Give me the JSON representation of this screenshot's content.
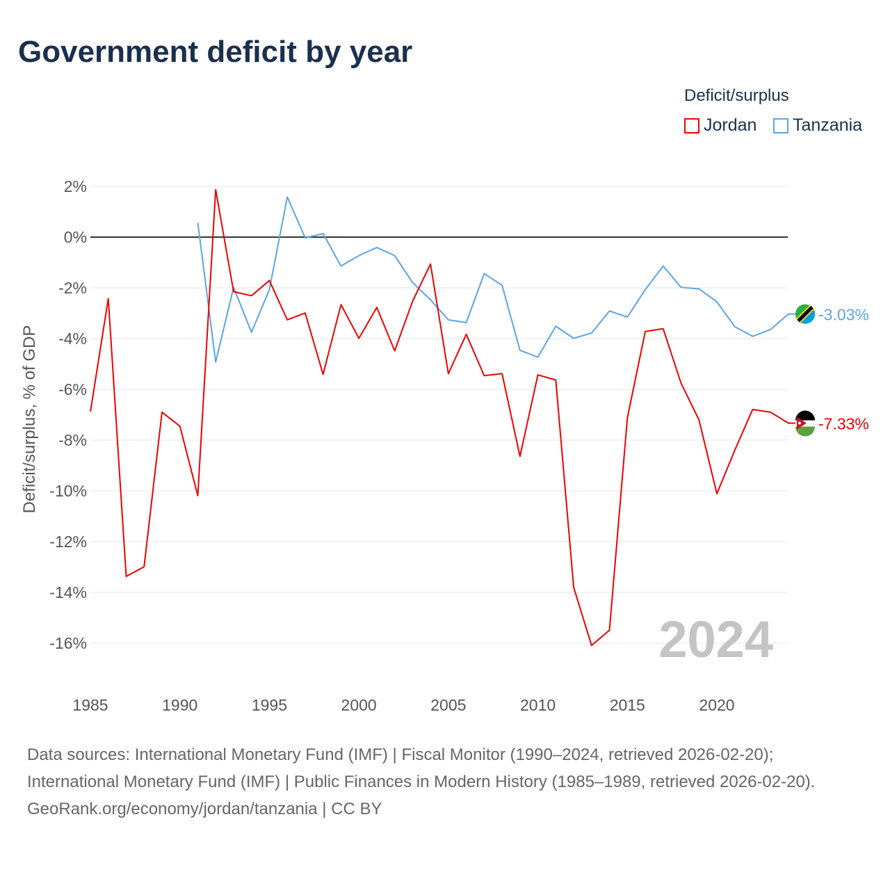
{
  "title": "Government deficit by year",
  "legend": {
    "title": "Deficit/surplus",
    "items": [
      "Jordan",
      "Tanzania"
    ]
  },
  "footer": {
    "sources": "Data sources: International Monetary Fund (IMF) | Fiscal Monitor (1990–2024, retrieved 2026-02-20); International Monetary Fund (IMF) | Public Finances in Modern History (1985–1989, retrieved 2026-02-20).",
    "credit": "GeoRank.org/economy/jordan/tanzania | CC BY"
  },
  "chart_data": {
    "type": "line",
    "title": "Government deficit by year",
    "xlabel": "",
    "ylabel": "Deficit/surplus, % of GDP",
    "xlim": [
      1985,
      2024
    ],
    "ylim": [
      -17,
      2
    ],
    "x_ticks": [
      1985,
      1990,
      1995,
      2000,
      2005,
      2010,
      2015,
      2020
    ],
    "y_ticks": [
      2,
      0,
      -2,
      -4,
      -6,
      -8,
      -10,
      -12,
      -14,
      -16
    ],
    "y_tick_labels": [
      "2%",
      "0%",
      "-2%",
      "-4%",
      "-6%",
      "-8%",
      "-10%",
      "-12%",
      "-14%",
      "-16%"
    ],
    "year_watermark": "2024",
    "grid": true,
    "legend_position": "top-right",
    "series": [
      {
        "name": "Jordan",
        "color": "#ee0000",
        "end_label": "-7.33%",
        "x": [
          1985,
          1986,
          1987,
          1988,
          1989,
          1990,
          1991,
          1992,
          1993,
          1994,
          1995,
          1996,
          1997,
          1998,
          1999,
          2000,
          2001,
          2002,
          2003,
          2004,
          2005,
          2006,
          2007,
          2008,
          2009,
          2010,
          2011,
          2012,
          2013,
          2014,
          2015,
          2016,
          2017,
          2018,
          2019,
          2020,
          2021,
          2022,
          2023,
          2024
        ],
        "values": [
          -6.88,
          -2.42,
          -13.37,
          -12.99,
          -6.9,
          -7.45,
          -10.19,
          1.87,
          -2.15,
          -2.31,
          -1.71,
          -3.26,
          -2.99,
          -5.41,
          -2.66,
          -3.99,
          -2.77,
          -4.48,
          -2.53,
          -1.06,
          -5.38,
          -3.83,
          -5.46,
          -5.38,
          -8.64,
          -5.43,
          -5.63,
          -13.8,
          -16.09,
          -15.49,
          -7.12,
          -3.72,
          -3.61,
          -5.76,
          -7.2,
          -10.11,
          -8.4,
          -6.79,
          -6.9,
          -7.33
        ]
      },
      {
        "name": "Tanzania",
        "color": "#5aa4ea",
        "end_label": "-3.03%",
        "x": [
          1991,
          1992,
          1993,
          1994,
          1995,
          1996,
          1997,
          1998,
          1999,
          2000,
          2001,
          2002,
          2003,
          2004,
          2005,
          2006,
          2007,
          2008,
          2009,
          2010,
          2011,
          2012,
          2013,
          2014,
          2015,
          2016,
          2017,
          2018,
          2019,
          2020,
          2021,
          2022,
          2023,
          2024
        ],
        "values": [
          0.57,
          -4.92,
          -1.98,
          -3.75,
          -2.07,
          1.58,
          -0.03,
          0.14,
          -1.14,
          -0.73,
          -0.41,
          -0.73,
          -1.79,
          -2.47,
          -3.26,
          -3.37,
          -1.44,
          -1.9,
          -4.46,
          -4.73,
          -3.51,
          -3.99,
          -3.78,
          -2.91,
          -3.15,
          -2.07,
          -1.14,
          -1.98,
          -2.04,
          -2.55,
          -3.53,
          -3.91,
          -3.64,
          -3.03
        ]
      }
    ]
  }
}
